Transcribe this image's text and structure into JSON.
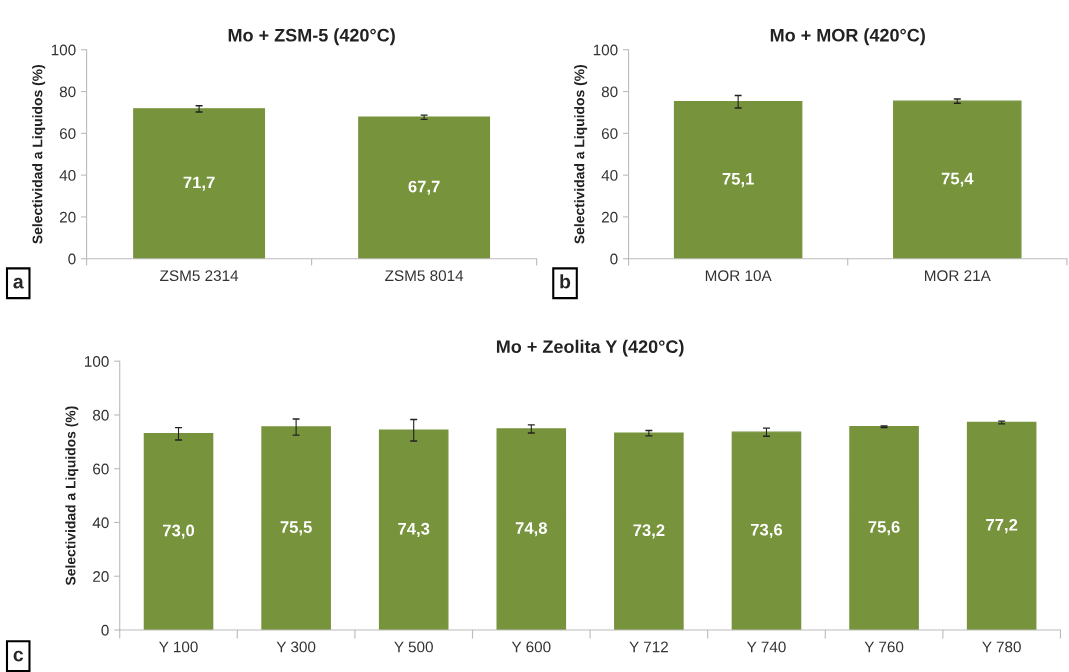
{
  "chart_data": [
    {
      "type": "bar",
      "title": "Mo + ZSM-5 (420°C)",
      "ylabel": "Selectividad a Liquidos (%)",
      "categories": [
        "ZSM5 2314",
        "ZSM5 8014"
      ],
      "values": [
        71.7,
        67.7
      ],
      "value_labels": [
        "71,7",
        "67,7"
      ],
      "errors": [
        1.5,
        1
      ],
      "color": "#77933c",
      "ylim": [
        0,
        100
      ],
      "yticks": [
        0,
        20,
        40,
        60,
        80,
        100
      ],
      "grid": false,
      "legend": false,
      "annotations": [
        "a"
      ]
    },
    {
      "type": "bar",
      "title": "Mo + MOR (420°C)",
      "ylabel": "Selectividad a Liquidos (%)",
      "categories": [
        "MOR 10A",
        "MOR 21A"
      ],
      "values": [
        75.1,
        75.4
      ],
      "value_labels": [
        "75,1",
        "75,4"
      ],
      "errors": [
        3,
        1
      ],
      "color": "#77933c",
      "ylim": [
        0,
        100
      ],
      "yticks": [
        0,
        20,
        40,
        60,
        80,
        100
      ],
      "grid": false,
      "legend": false,
      "annotations": [
        "b"
      ]
    },
    {
      "type": "bar",
      "title": "Mo + Zeolita Y (420°C)",
      "ylabel": "Selectividad a Liquidos (%)",
      "categories": [
        "Y 100",
        "Y 300",
        "Y 500",
        "Y 600",
        "Y 712",
        "Y 740",
        "Y 760",
        "Y 780"
      ],
      "values": [
        73.0,
        75.5,
        74.3,
        74.8,
        73.2,
        73.6,
        75.6,
        77.2
      ],
      "value_labels": [
        "73,0",
        "75,5",
        "74,3",
        "74,8",
        "73,2",
        "73,6",
        "75,6",
        "77,2"
      ],
      "errors": [
        2.3,
        3,
        4,
        1.5,
        1,
        1.5,
        0.3,
        0.5
      ],
      "color": "#77933c",
      "ylim": [
        0,
        100
      ],
      "yticks": [
        0,
        20,
        40,
        60,
        80,
        100
      ],
      "grid": false,
      "legend": false,
      "annotations": [
        "c"
      ]
    }
  ]
}
